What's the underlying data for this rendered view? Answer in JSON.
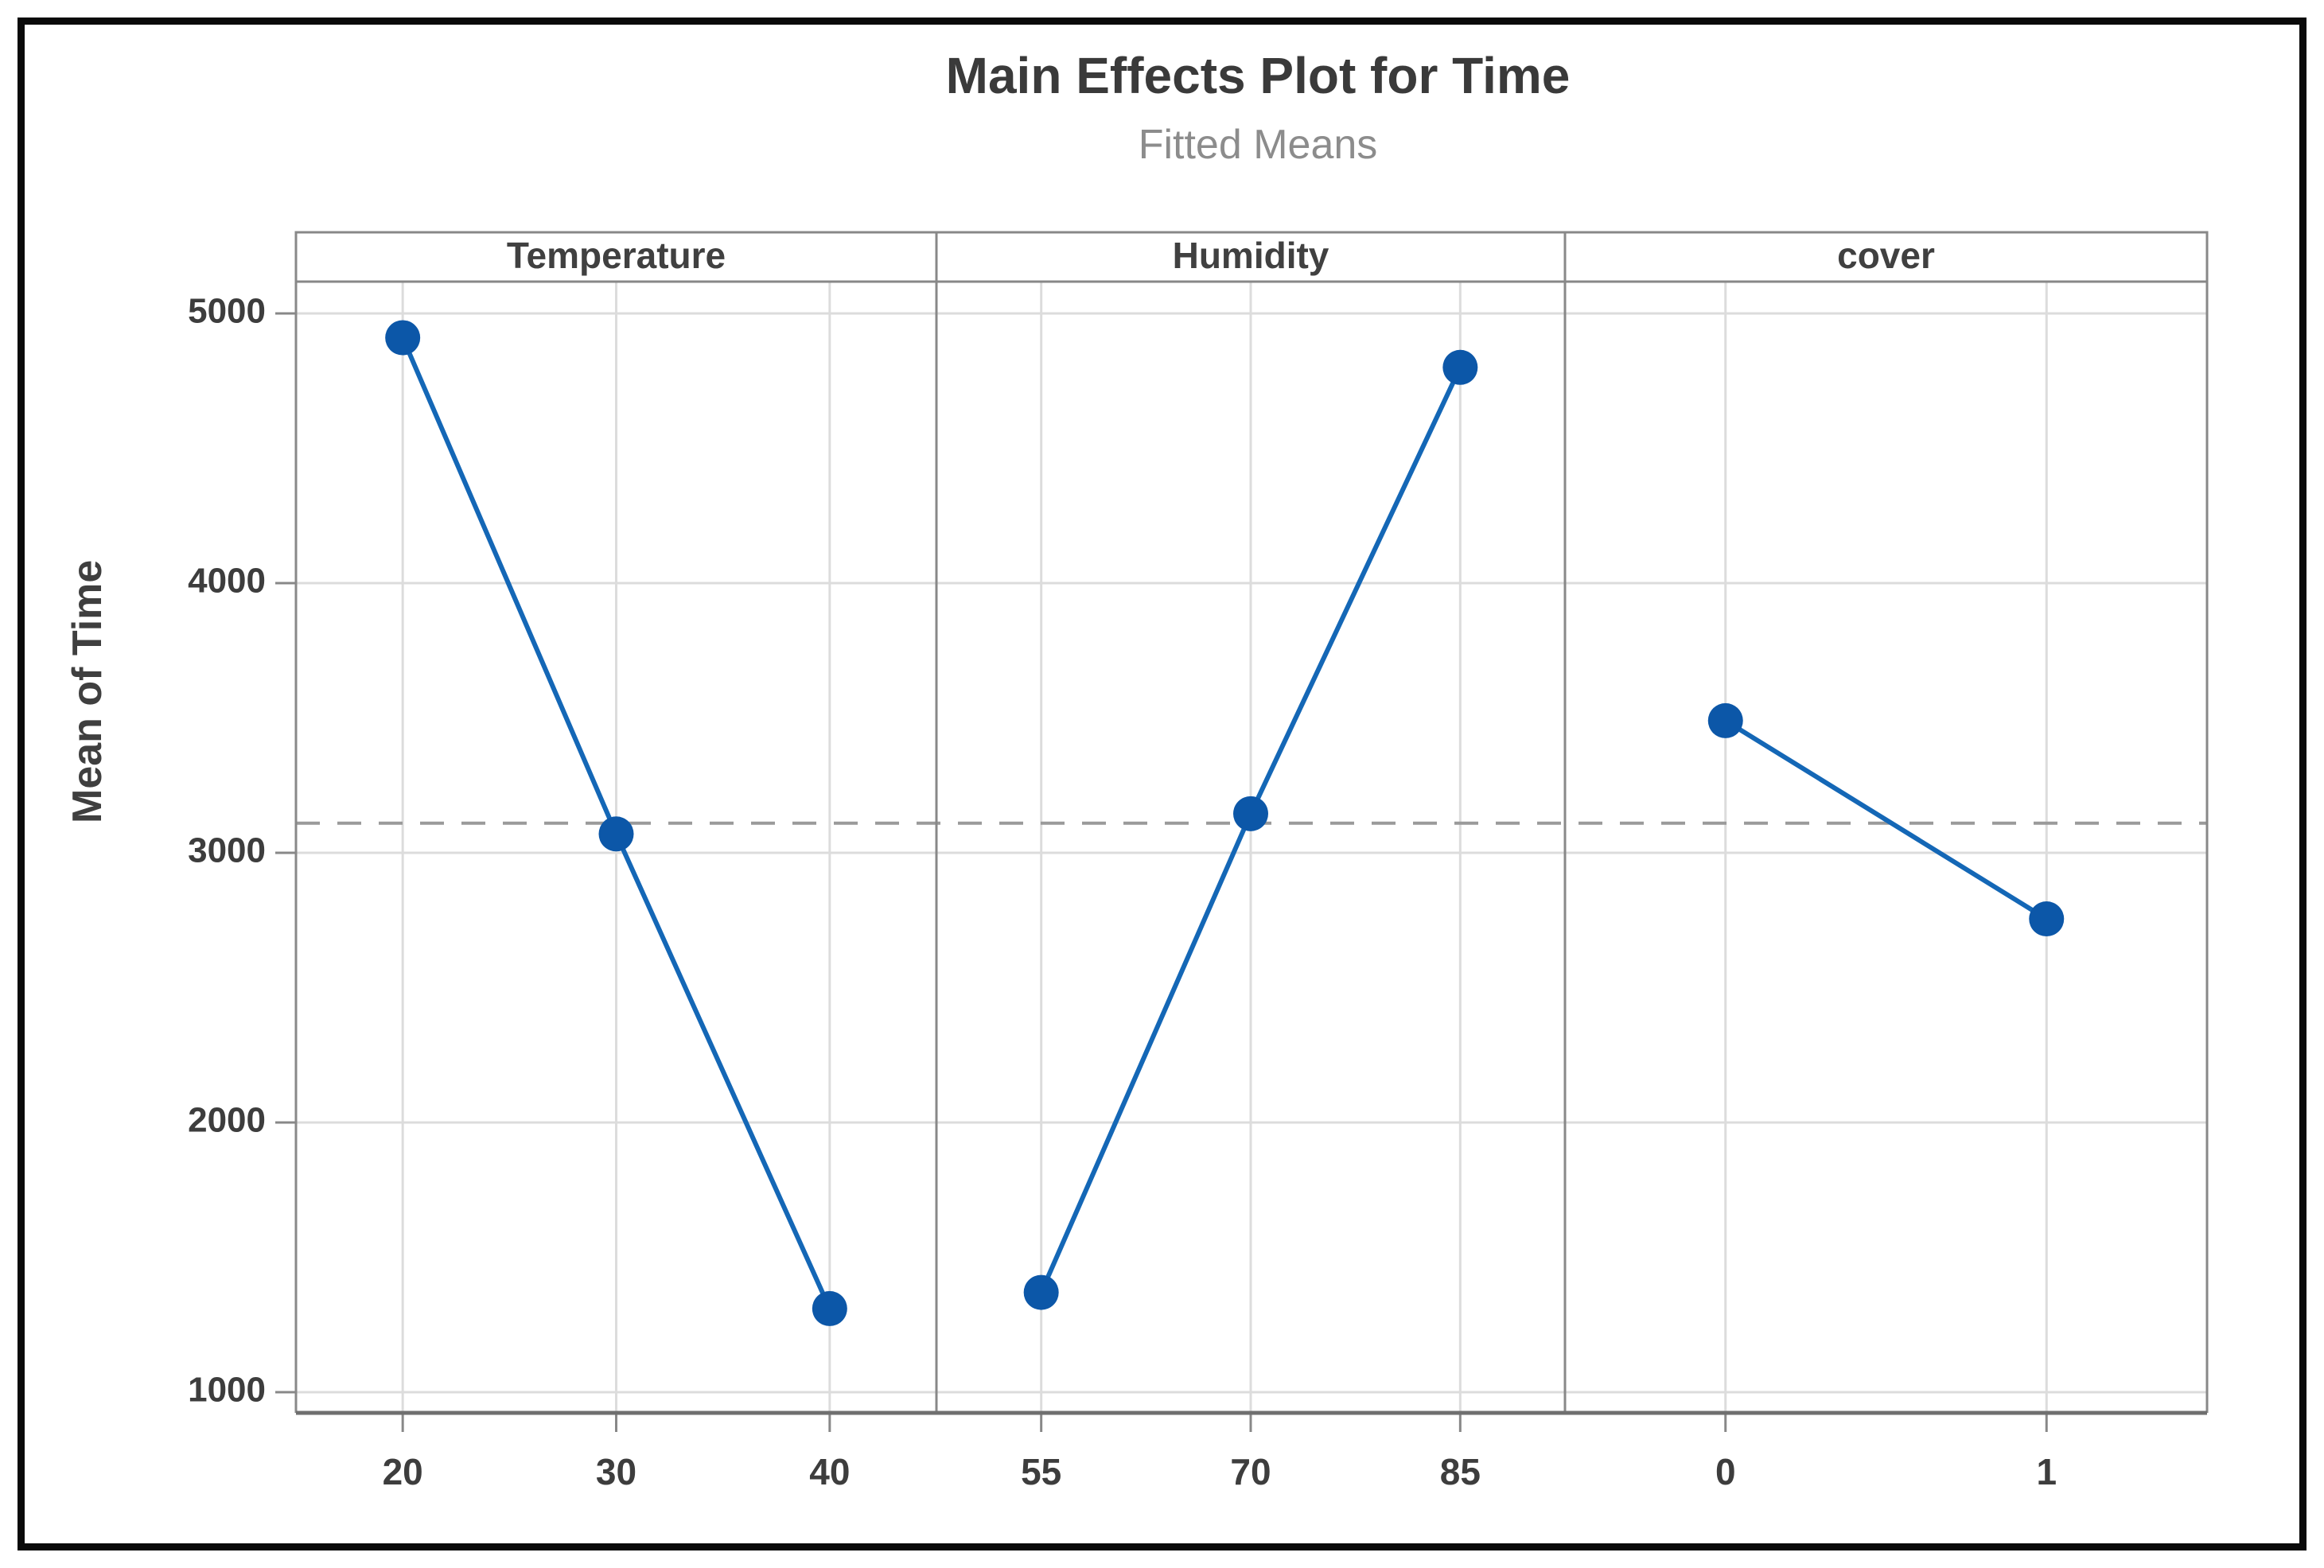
{
  "title": "Main Effects Plot for Time",
  "subtitle": "Fitted Means",
  "y_axis_title": "Mean of Time",
  "colors": {
    "line": "#1467b6",
    "marker": "#0c57a8",
    "gridline": "#dcdcdc",
    "panel_border": "#888888",
    "axis_line": "#6f6f6f",
    "dashed_mean_line": "#9a9a9a",
    "tick_text": "#3d3d3d",
    "header_text": "#404040",
    "title_text": "#3a3a3a",
    "subtitle_text": "#8c8c8c",
    "outer_border": "#0a0a0a"
  },
  "chart_data": {
    "type": "line",
    "title": "Main Effects Plot for Time",
    "subtitle": "Fitted Means",
    "ylabel": "Mean of Time",
    "ylim": [
      850,
      5250
    ],
    "yticks": [
      1000,
      2000,
      3000,
      4000,
      5000
    ],
    "grid": true,
    "legend": false,
    "grand_mean": 3110,
    "grand_mean_line_style": "dashed",
    "panels": [
      {
        "label": "Temperature",
        "categories": [
          "20",
          "30",
          "40"
        ],
        "values": [
          4910,
          3070,
          1310
        ]
      },
      {
        "label": "Humidity",
        "categories": [
          "55",
          "70",
          "85"
        ],
        "values": [
          1370,
          3145,
          4800
        ]
      },
      {
        "label": "cover",
        "categories": [
          "0",
          "1"
        ],
        "values": [
          3490,
          2755
        ]
      }
    ]
  }
}
